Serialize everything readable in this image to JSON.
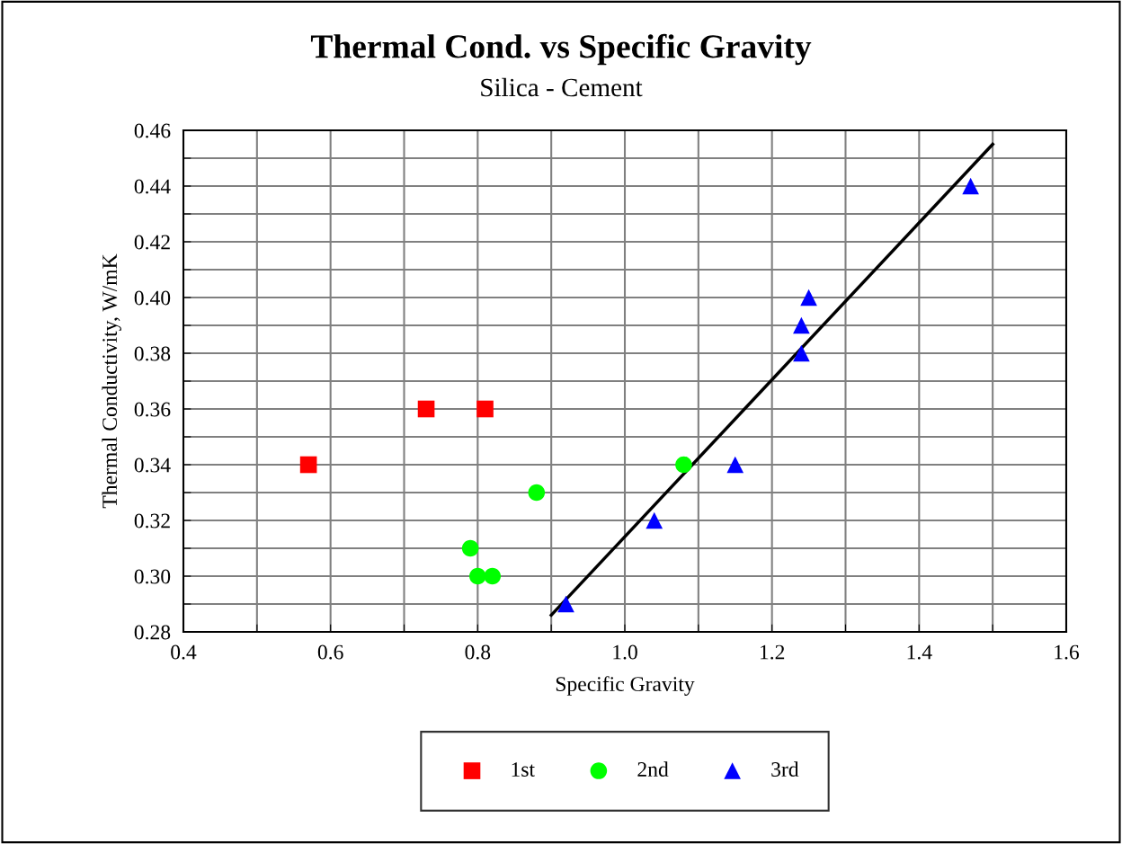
{
  "chart_data": {
    "type": "scatter",
    "title": "Thermal Cond. vs Specific Gravity",
    "subtitle": "Silica - Cement",
    "xlabel": "Specific Gravity",
    "ylabel": "Thermal Conductivity, W/mK",
    "xlim": [
      0.4,
      1.6
    ],
    "ylim": [
      0.28,
      0.46
    ],
    "xticks": [
      0.4,
      {
        "value": 0.5,
        "label": null
      },
      0.6,
      {
        "value": 0.7,
        "label": null
      },
      0.8,
      {
        "value": 0.9,
        "label": null
      },
      "1.0",
      {
        "value": 1.1,
        "label": null
      },
      1.2,
      {
        "value": 1.3,
        "label": null
      },
      1.4,
      {
        "value": 1.5,
        "label": null
      },
      1.6
    ],
    "yticks": [
      0.28,
      {
        "value": 0.29,
        "label": null
      },
      "0.30",
      {
        "value": 0.31,
        "label": null
      },
      0.32,
      {
        "value": 0.33,
        "label": null
      },
      0.34,
      {
        "value": 0.35,
        "label": null
      },
      0.36,
      {
        "value": 0.37,
        "label": null
      },
      0.38,
      {
        "value": 0.39,
        "label": null
      },
      "0.40",
      {
        "value": 0.41,
        "label": null
      },
      0.42,
      {
        "value": 0.43,
        "label": null
      },
      0.44,
      {
        "value": 0.45,
        "label": null
      },
      0.46
    ],
    "grid": true,
    "legend": "bottom",
    "series": [
      {
        "name": "1st",
        "color": "#ff0000",
        "marker": "square",
        "x": [
          0.57,
          0.73,
          0.81
        ],
        "values": [
          0.34,
          0.36,
          0.36
        ]
      },
      {
        "name": "2nd",
        "color": "#00ff00",
        "marker": "circle",
        "x": [
          0.88,
          0.79,
          0.8,
          0.82,
          1.08
        ],
        "values": [
          0.33,
          0.31,
          0.3,
          0.3,
          0.34
        ]
      },
      {
        "name": "3rd",
        "color": "#0000ff",
        "marker": "triangle",
        "x": [
          0.92,
          1.04,
          1.15,
          1.24,
          1.24,
          1.25,
          1.47
        ],
        "values": [
          0.29,
          0.32,
          0.34,
          0.38,
          0.39,
          0.4,
          0.44
        ]
      },
      {
        "type": "line",
        "color": "#000000",
        "marker": "none",
        "x": [
          0.9,
          1.5
        ],
        "values": [
          0.286,
          0.455
        ]
      }
    ]
  }
}
